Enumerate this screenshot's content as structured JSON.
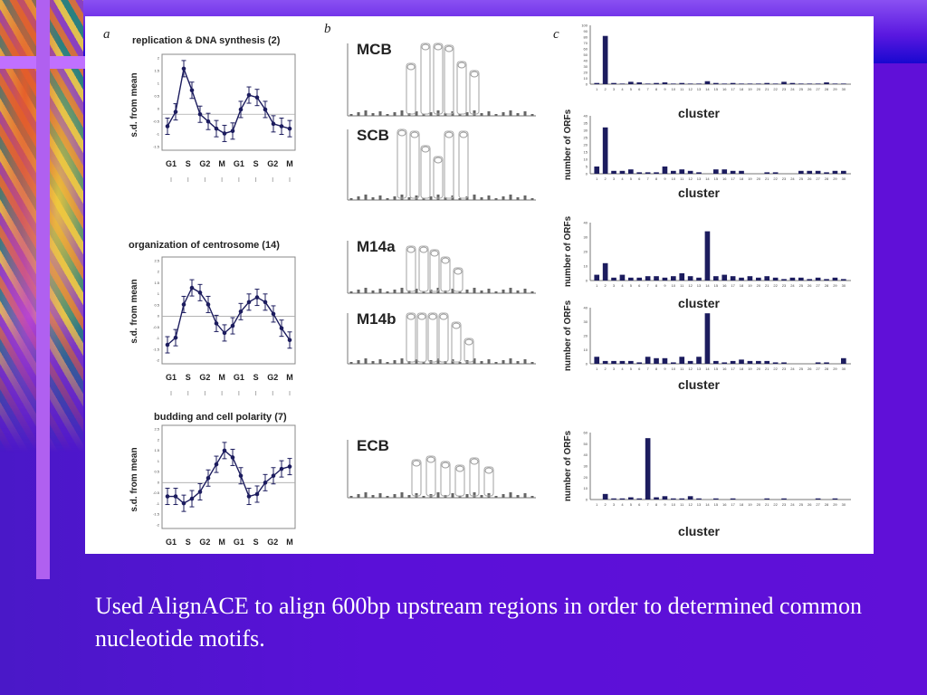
{
  "slide": {
    "caption": "Used AlignACE to align 600bp upstream regions in order to determined common nucleotide motifs."
  },
  "figure": {
    "panel_letters": [
      "a",
      "b",
      "c"
    ],
    "cluster_label": "cluster",
    "orf_ylabel": "number of ORFs",
    "profile_ylabel": "s.d. from mean",
    "phase_labels": [
      "G1",
      "S",
      "G2",
      "M",
      "G1",
      "S",
      "G2",
      "M"
    ],
    "motifs": [
      "MCB",
      "SCB",
      "M14a",
      "M14b",
      "ECB"
    ]
  },
  "colors": {
    "bar": "#1c1c5e",
    "line": "#1c1c5e",
    "slide_bg": "#5a10d4",
    "accent": "#b060f0"
  },
  "chart_data": [
    {
      "id": "profile-replication",
      "type": "line",
      "title": "replication & DNA synthesis (2)",
      "ylabel": "s.d. from mean",
      "yticks": [
        "2",
        "1.5",
        "1",
        "0.5",
        "0",
        "-0.5",
        "-1",
        "-1.5"
      ],
      "ylim": [
        -1.5,
        2.5
      ],
      "x_labels": [
        "G1",
        "S",
        "G2",
        "M",
        "G1",
        "S",
        "G2",
        "M"
      ],
      "values": [
        -0.5,
        0.1,
        1.9,
        1.0,
        0.0,
        -0.3,
        -0.6,
        -0.8,
        -0.7,
        0.2,
        0.8,
        0.7,
        0.2,
        -0.4,
        -0.5,
        -0.6
      ]
    },
    {
      "id": "profile-centrosome",
      "type": "line",
      "title": "organization of centrosome (14)",
      "ylabel": "s.d. from mean",
      "yticks": [
        "2.5",
        "2",
        "1.5",
        "1",
        "0.5",
        "0",
        "-0.5",
        "-1",
        "-1.5",
        "-2"
      ],
      "ylim": [
        -2,
        2.5
      ],
      "x_labels": [
        "G1",
        "S",
        "G2",
        "M",
        "G1",
        "S",
        "G2",
        "M"
      ],
      "values": [
        -1.2,
        -0.9,
        0.5,
        1.2,
        1.0,
        0.5,
        -0.3,
        -0.7,
        -0.4,
        0.2,
        0.6,
        0.8,
        0.6,
        0.1,
        -0.5,
        -1.0
      ]
    },
    {
      "id": "profile-budding",
      "type": "line",
      "title": "budding and cell polarity (7)",
      "ylabel": "s.d. from mean",
      "yticks": [
        "2.5",
        "2",
        "1.5",
        "1",
        "0.5",
        "0",
        "-0.5",
        "-1",
        "-1.5",
        "-2"
      ],
      "ylim": [
        -2,
        2.5
      ],
      "x_labels": [
        "G1",
        "S",
        "G2",
        "M",
        "G1",
        "S",
        "G2",
        "M"
      ],
      "values": [
        -0.6,
        -0.6,
        -0.9,
        -0.7,
        -0.4,
        0.2,
        0.8,
        1.4,
        1.1,
        0.3,
        -0.6,
        -0.5,
        0.0,
        0.3,
        0.6,
        0.7
      ]
    },
    {
      "id": "orf-mcb",
      "type": "bar",
      "xlabel": "cluster",
      "ylim": [
        0,
        100
      ],
      "yticks": [
        "100",
        "90",
        "80",
        "70",
        "60",
        "50",
        "40",
        "30",
        "20",
        "10",
        "0"
      ],
      "categories": [
        "1",
        "2",
        "3",
        "4",
        "5",
        "6",
        "7",
        "8",
        "9",
        "10",
        "11",
        "12",
        "13",
        "14",
        "15",
        "16",
        "17",
        "18",
        "19",
        "20",
        "21",
        "22",
        "23",
        "24",
        "25",
        "26",
        "27",
        "28",
        "29",
        "30"
      ],
      "values": [
        2,
        82,
        2,
        1,
        4,
        3,
        1,
        2,
        3,
        1,
        2,
        1,
        1,
        5,
        2,
        1,
        2,
        1,
        1,
        1,
        2,
        1,
        4,
        2,
        1,
        1,
        1,
        3,
        1,
        1
      ]
    },
    {
      "id": "orf-scb",
      "type": "bar",
      "xlabel": "cluster",
      "ylim": [
        0,
        40
      ],
      "yticks": [
        "40",
        "35",
        "30",
        "25",
        "20",
        "15",
        "10",
        "5",
        "0"
      ],
      "categories": [
        "1",
        "2",
        "3",
        "4",
        "5",
        "6",
        "7",
        "8",
        "9",
        "10",
        "11",
        "12",
        "13",
        "14",
        "15",
        "16",
        "17",
        "18",
        "19",
        "20",
        "21",
        "22",
        "23",
        "24",
        "25",
        "26",
        "27",
        "28",
        "29",
        "30"
      ],
      "values": [
        5,
        32,
        2,
        2,
        3,
        1,
        1,
        1,
        5,
        2,
        3,
        2,
        1,
        0,
        3,
        3,
        2,
        2,
        0,
        0,
        1,
        1,
        0,
        0,
        2,
        2,
        2,
        1,
        2,
        2
      ]
    },
    {
      "id": "orf-m14a",
      "type": "bar",
      "xlabel": "cluster",
      "ylim": [
        0,
        40
      ],
      "yticks": [
        "40",
        "30",
        "20",
        "10",
        "0"
      ],
      "categories": [
        "1",
        "2",
        "3",
        "4",
        "5",
        "6",
        "7",
        "8",
        "9",
        "10",
        "11",
        "12",
        "13",
        "14",
        "15",
        "16",
        "17",
        "18",
        "19",
        "20",
        "21",
        "22",
        "23",
        "24",
        "25",
        "26",
        "27",
        "28",
        "29",
        "30"
      ],
      "values": [
        4,
        12,
        2,
        4,
        2,
        2,
        3,
        3,
        2,
        3,
        5,
        3,
        2,
        34,
        3,
        4,
        3,
        2,
        3,
        2,
        3,
        2,
        1,
        2,
        2,
        1,
        2,
        1,
        2,
        1
      ]
    },
    {
      "id": "orf-m14b",
      "type": "bar",
      "xlabel": "cluster",
      "ylim": [
        0,
        40
      ],
      "yticks": [
        "40",
        "30",
        "20",
        "10",
        "0"
      ],
      "categories": [
        "1",
        "2",
        "3",
        "4",
        "5",
        "6",
        "7",
        "8",
        "9",
        "10",
        "11",
        "12",
        "13",
        "14",
        "15",
        "16",
        "17",
        "18",
        "19",
        "20",
        "21",
        "22",
        "23",
        "24",
        "25",
        "26",
        "27",
        "28",
        "29",
        "30"
      ],
      "values": [
        5,
        2,
        2,
        2,
        2,
        1,
        5,
        4,
        4,
        1,
        5,
        2,
        5,
        36,
        2,
        1,
        2,
        3,
        2,
        2,
        2,
        1,
        1,
        0,
        0,
        0,
        1,
        1,
        0,
        4
      ]
    },
    {
      "id": "orf-ecb",
      "type": "bar",
      "xlabel": "cluster",
      "ylim": [
        0,
        60
      ],
      "yticks": [
        "60",
        "50",
        "40",
        "30",
        "20",
        "10",
        "0"
      ],
      "categories": [
        "1",
        "2",
        "3",
        "4",
        "5",
        "6",
        "7",
        "8",
        "9",
        "10",
        "11",
        "12",
        "13",
        "14",
        "15",
        "16",
        "17",
        "18",
        "19",
        "20",
        "21",
        "22",
        "23",
        "24",
        "25",
        "26",
        "27",
        "28",
        "29",
        "30"
      ],
      "values": [
        0,
        5,
        1,
        1,
        2,
        1,
        55,
        2,
        3,
        1,
        1,
        3,
        1,
        0,
        1,
        0,
        1,
        0,
        0,
        0,
        1,
        0,
        1,
        0,
        0,
        0,
        1,
        0,
        1,
        0
      ]
    }
  ]
}
